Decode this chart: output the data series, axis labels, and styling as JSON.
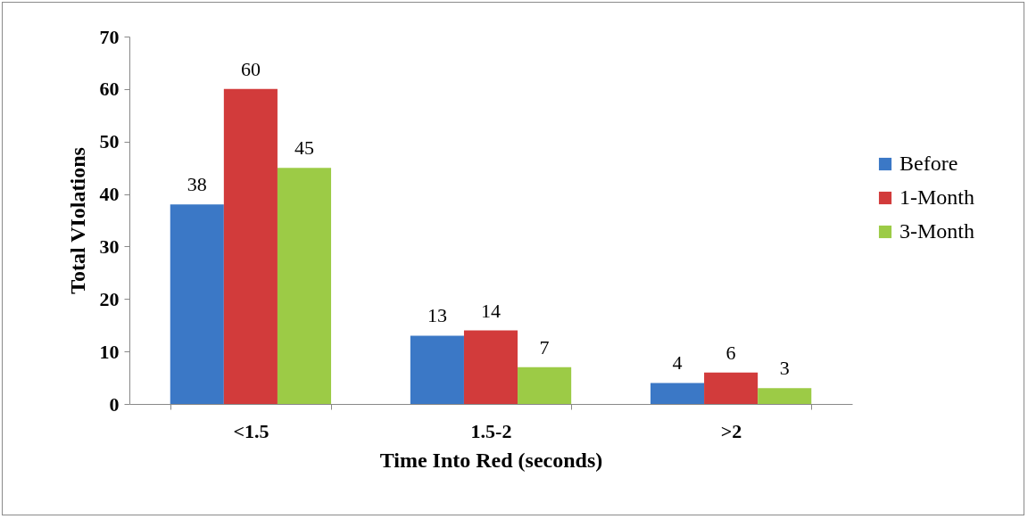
{
  "chart_data": {
    "type": "bar",
    "xlabel": "Time Into Red (seconds)",
    "ylabel": "Total VIolations",
    "categories": [
      "<1.5",
      "1.5-2",
      ">2"
    ],
    "series": [
      {
        "name": "Before",
        "color": "#3b78c6",
        "values": [
          38,
          13,
          4
        ]
      },
      {
        "name": "1-Month",
        "color": "#d23b3b",
        "values": [
          60,
          14,
          6
        ]
      },
      {
        "name": "3-Month",
        "color": "#9ccb46",
        "values": [
          45,
          7,
          3
        ]
      }
    ],
    "ylim": [
      0,
      70
    ],
    "yticks": [
      0,
      10,
      20,
      30,
      40,
      50,
      60,
      70
    ],
    "grid": false,
    "legend": "right",
    "data_labels": true
  }
}
